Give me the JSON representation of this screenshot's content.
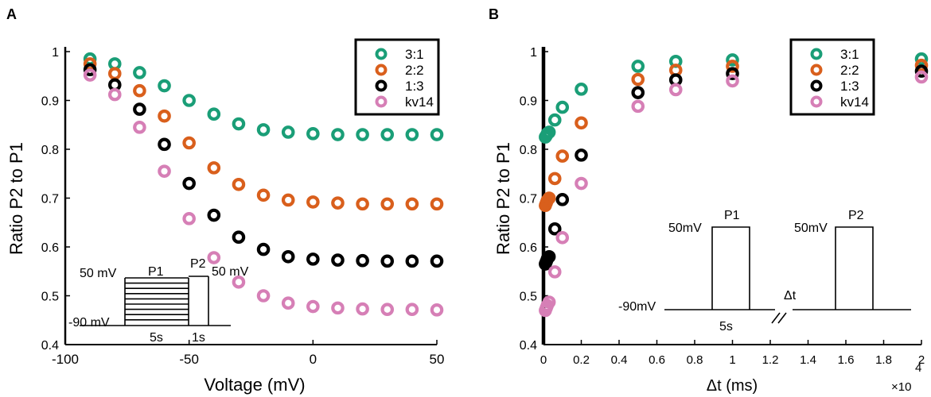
{
  "chart_data": [
    {
      "panel_label": "A",
      "type": "scatter",
      "xlabel": "Voltage (mV)",
      "ylabel": "Ratio P2 to P1",
      "xlim": [
        -100,
        50
      ],
      "ylim": [
        0.4,
        1
      ],
      "xticks": [
        -100,
        -50,
        0,
        50
      ],
      "xtick_labels": [
        "-100",
        "-50",
        "0",
        "50"
      ],
      "yticks": [
        0.4,
        0.5,
        0.6,
        0.7,
        0.8,
        0.9,
        1
      ],
      "ytick_labels": [
        "0.4",
        "0.5",
        "0.6",
        "0.7",
        "0.8",
        "0.9",
        "1"
      ],
      "legend_position": "top-right",
      "x": [
        -90,
        -80,
        -70,
        -60,
        -50,
        -40,
        -30,
        -20,
        -10,
        0,
        10,
        20,
        30,
        40,
        50
      ],
      "series": [
        {
          "name": "3:1",
          "color": "#1a9e77",
          "values": [
            0.985,
            0.975,
            0.957,
            0.93,
            0.9,
            0.872,
            0.852,
            0.84,
            0.835,
            0.832,
            0.83,
            0.83,
            0.83,
            0.83,
            0.83
          ]
        },
        {
          "name": "2:2",
          "color": "#d95f1c",
          "values": [
            0.975,
            0.955,
            0.92,
            0.868,
            0.813,
            0.762,
            0.728,
            0.706,
            0.696,
            0.692,
            0.69,
            0.688,
            0.688,
            0.688,
            0.688
          ]
        },
        {
          "name": "1:3",
          "color": "#000000",
          "values": [
            0.963,
            0.932,
            0.882,
            0.81,
            0.73,
            0.665,
            0.62,
            0.595,
            0.58,
            0.575,
            0.573,
            0.572,
            0.571,
            0.571,
            0.571
          ]
        },
        {
          "name": "kv14",
          "color": "#d67fb6",
          "values": [
            0.952,
            0.912,
            0.845,
            0.755,
            0.658,
            0.578,
            0.528,
            0.5,
            0.485,
            0.478,
            0.475,
            0.473,
            0.472,
            0.472,
            0.471
          ]
        }
      ],
      "inset": {
        "label_top": "50 mV",
        "label_bottom": "-90 mV",
        "label_p1": "P1",
        "label_p2": "P2",
        "label_p2_voltage": "50 mV",
        "label_duration_p1": "5s",
        "label_duration_p2": "1s"
      }
    },
    {
      "panel_label": "B",
      "type": "scatter",
      "xlabel": "Δt (ms)",
      "ylabel": "Ratio P2 to P1",
      "xlim": [
        0,
        2
      ],
      "ylim": [
        0.4,
        1
      ],
      "x_multiplier": "×10",
      "x_multiplier_exponent": "4",
      "xticks": [
        0,
        0.2,
        0.4,
        0.6,
        0.8,
        1,
        1.2,
        1.4,
        1.6,
        1.8,
        2
      ],
      "xtick_labels": [
        "0",
        "0.2",
        "0.4",
        "0.6",
        "0.8",
        "1",
        "1.2",
        "1.4",
        "1.6",
        "1.8",
        "2"
      ],
      "yticks": [
        0.4,
        0.5,
        0.6,
        0.7,
        0.8,
        0.9,
        1
      ],
      "ytick_labels": [
        "0.4",
        "0.5",
        "0.6",
        "0.7",
        "0.8",
        "0.9",
        "1"
      ],
      "legend_position": "top-right",
      "series": [
        {
          "name": "3:1",
          "color": "#1a9e77",
          "x": [
            0.01,
            0.015,
            0.02,
            0.03,
            0.06,
            0.1,
            0.2,
            0.5,
            0.7,
            1.0,
            2.0
          ],
          "values": [
            0.825,
            0.828,
            0.832,
            0.835,
            0.86,
            0.886,
            0.923,
            0.97,
            0.98,
            0.983,
            0.985
          ]
        },
        {
          "name": "2:2",
          "color": "#d95f1c",
          "x": [
            0.01,
            0.015,
            0.02,
            0.03,
            0.06,
            0.1,
            0.2,
            0.5,
            0.7,
            1.0,
            2.0
          ],
          "values": [
            0.685,
            0.69,
            0.695,
            0.7,
            0.74,
            0.786,
            0.854,
            0.943,
            0.962,
            0.97,
            0.972
          ]
        },
        {
          "name": "1:3",
          "color": "#000000",
          "x": [
            0.01,
            0.015,
            0.02,
            0.03,
            0.06,
            0.1,
            0.2,
            0.5,
            0.7,
            1.0,
            2.0
          ],
          "values": [
            0.565,
            0.57,
            0.575,
            0.58,
            0.637,
            0.697,
            0.788,
            0.916,
            0.942,
            0.955,
            0.96
          ]
        },
        {
          "name": "kv14",
          "color": "#d67fb6",
          "x": [
            0.01,
            0.015,
            0.02,
            0.03,
            0.06,
            0.1,
            0.2,
            0.5,
            0.7,
            1.0,
            2.0
          ],
          "values": [
            0.47,
            0.475,
            0.48,
            0.487,
            0.549,
            0.619,
            0.73,
            0.888,
            0.922,
            0.94,
            0.948
          ]
        }
      ],
      "inset": {
        "label_p1_voltage": "50mV",
        "label_p2_voltage": "50mV",
        "label_p1": "P1",
        "label_p2": "P2",
        "label_baseline": "-90mV",
        "label_delta": "Δt",
        "label_duration": "5s"
      }
    }
  ]
}
